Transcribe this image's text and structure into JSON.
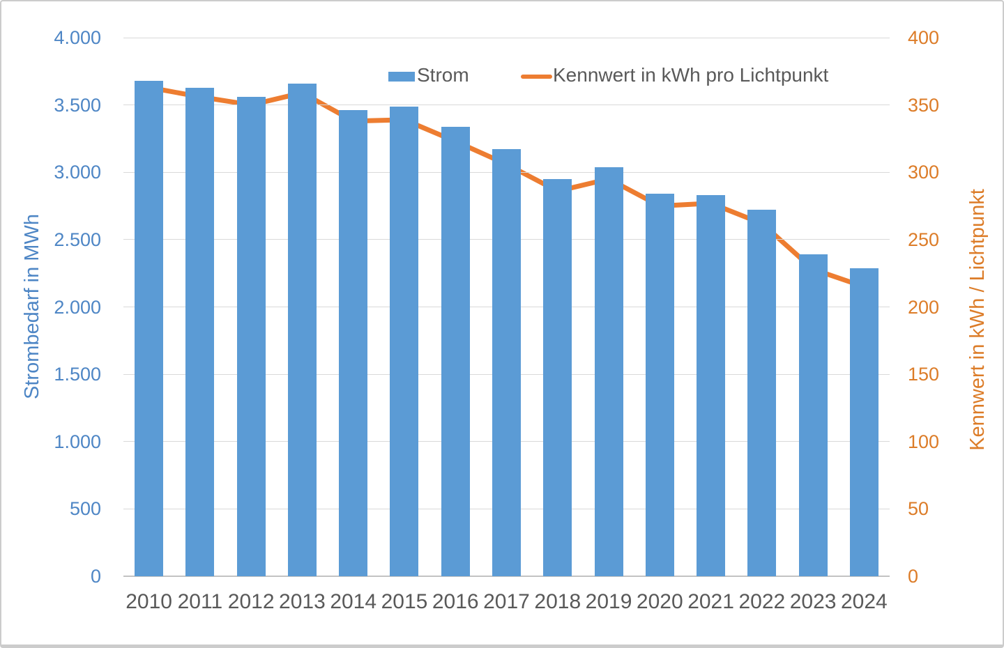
{
  "chart_data": {
    "type": "combo-bar-line",
    "title": "",
    "categories": [
      "2010",
      "2011",
      "2012",
      "2013",
      "2014",
      "2015",
      "2016",
      "2017",
      "2018",
      "2019",
      "2020",
      "2021",
      "2022",
      "2023",
      "2024"
    ],
    "series": [
      {
        "name": "Strom",
        "type": "bar",
        "axis": "left",
        "color": "#5B9BD5",
        "values": [
          3680,
          3630,
          3560,
          3660,
          3460,
          3490,
          3340,
          3170,
          2950,
          3040,
          2840,
          2830,
          2720,
          2390,
          2285
        ]
      },
      {
        "name": "Kennwert in kWh pro Lichtpunkt",
        "type": "line",
        "axis": "right",
        "color": "#ED7D31",
        "values": [
          363,
          356,
          350,
          359,
          338,
          339,
          323,
          306,
          286,
          295,
          275,
          277,
          262,
          228,
          215
        ]
      }
    ],
    "left_axis": {
      "title": "Strombedarf in MWh",
      "min": 0,
      "max": 4000,
      "step": 500,
      "tick_labels": [
        "0",
        "500",
        "1.000",
        "1.500",
        "2.000",
        "2.500",
        "3.000",
        "3.500",
        "4.000"
      ],
      "text_color": "#4E86C5"
    },
    "right_axis": {
      "title": "Kennwert in kWh / Lichtpunkt",
      "min": 0,
      "max": 400,
      "step": 50,
      "tick_labels": [
        "0",
        "50",
        "100",
        "150",
        "200",
        "250",
        "300",
        "350",
        "400"
      ],
      "text_color": "#DC7C28"
    },
    "legend": {
      "position": "top",
      "items": [
        {
          "label": "Strom",
          "marker": "square",
          "color": "#5B9BD5"
        },
        {
          "label": "Kennwert in kWh pro Lichtpunkt",
          "marker": "line",
          "color": "#ED7D31"
        }
      ]
    },
    "grid": {
      "gridline_color": "#D9D9D9",
      "axis_line_color": "#C3C3C3",
      "grid_on": true,
      "legend_text_color": "#595959"
    }
  }
}
